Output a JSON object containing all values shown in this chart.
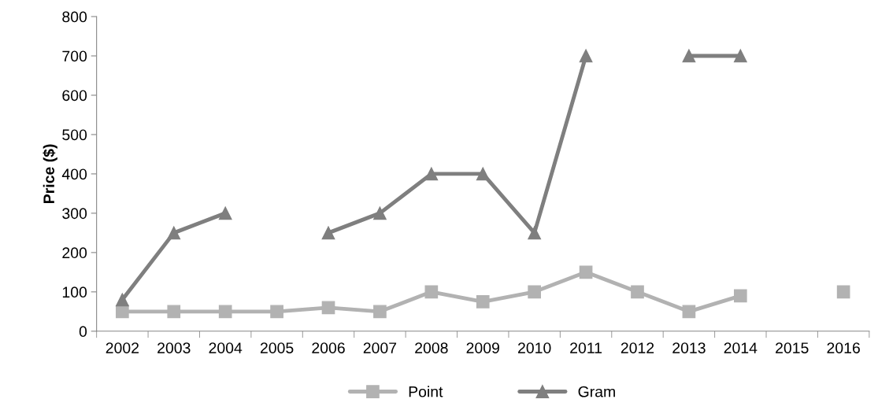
{
  "chart_data": {
    "type": "line",
    "ylabel": "Price ($)",
    "categories": [
      "2002",
      "2003",
      "2004",
      "2005",
      "2006",
      "2007",
      "2008",
      "2009",
      "2010",
      "2011",
      "2012",
      "2013",
      "2014",
      "2015",
      "2016"
    ],
    "series": [
      {
        "name": "Point",
        "color": "#b2b2b2",
        "marker": "square",
        "values": [
          50,
          50,
          50,
          50,
          60,
          50,
          100,
          75,
          100,
          150,
          100,
          50,
          90,
          null,
          100
        ]
      },
      {
        "name": "Gram",
        "color": "#7f7f7f",
        "marker": "triangle",
        "values": [
          80,
          250,
          300,
          null,
          250,
          300,
          400,
          400,
          250,
          700,
          null,
          700,
          700,
          null,
          null
        ]
      }
    ],
    "ylim": [
      0,
      800
    ],
    "yticks": [
      0,
      100,
      200,
      300,
      400,
      500,
      600,
      700,
      800
    ],
    "grid": false,
    "legend": "bottom",
    "line_style": "solid"
  }
}
